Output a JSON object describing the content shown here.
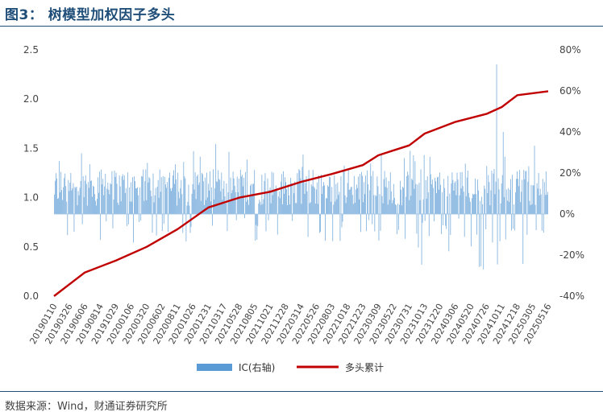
{
  "header": {
    "title": "图3：  树模型加权因子多头"
  },
  "footer": {
    "source": "数据来源：Wind，财通证券研究所"
  },
  "chart_data": {
    "type": "bar+line",
    "left_axis": {
      "ylim": [
        0.0,
        2.5
      ],
      "ticks": [
        "0.0",
        "0.5",
        "1.0",
        "1.5",
        "2.0",
        "2.5"
      ]
    },
    "right_axis": {
      "ylim": [
        -40,
        80
      ],
      "ticks": [
        "-40%",
        "-20%",
        "0%",
        "20%",
        "40%",
        "60%",
        "80%"
      ]
    },
    "x_tick_labels": [
      "20190110",
      "20190326",
      "20190606",
      "20190814",
      "20191029",
      "20200106",
      "20200320",
      "20200602",
      "20200811",
      "20201026",
      "20201231",
      "20210317",
      "20210528",
      "20210805",
      "20211021",
      "20211228",
      "20220314",
      "20220526",
      "20220803",
      "20221018",
      "20221223",
      "20230309",
      "20230522",
      "20230731",
      "20231013",
      "20231220",
      "20240306",
      "20240520",
      "20240726",
      "20241011",
      "20241218",
      "20250305",
      "20250516"
    ],
    "series": [
      {
        "name": "IC(右轴)",
        "type": "bar",
        "axis": "right",
        "color": "#5b9bd5",
        "approx_range": [
          -30,
          73
        ]
      },
      {
        "name": "多头累计",
        "type": "line",
        "axis": "left",
        "color": "#c00000",
        "x_index": [
          0,
          2,
          4,
          6,
          8,
          10,
          12,
          14,
          16,
          18,
          20,
          21,
          22,
          23,
          24,
          26,
          28,
          29,
          30,
          32
        ],
        "values": [
          0.0,
          0.24,
          0.36,
          0.5,
          0.68,
          0.9,
          1.0,
          1.06,
          1.16,
          1.24,
          1.33,
          1.43,
          1.48,
          1.53,
          1.65,
          1.77,
          1.85,
          1.92,
          2.04,
          2.08
        ]
      }
    ]
  },
  "legend": {
    "ic_label": "IC(右轴)",
    "line_label": "多头累计"
  }
}
